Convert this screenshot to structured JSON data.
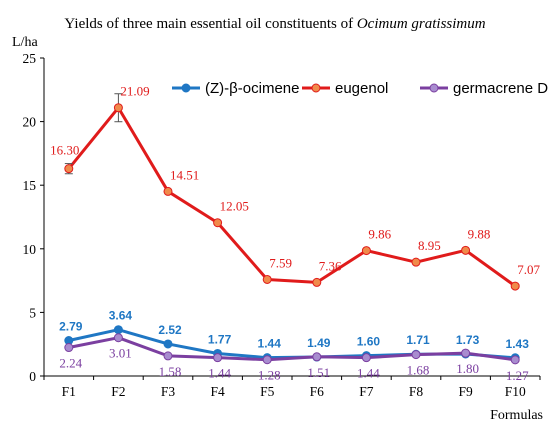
{
  "chart_data": {
    "type": "line",
    "title_plain": "Yields of three main essential oil constituents of ",
    "title_italic": "Ocimum gratissimum",
    "ylabel": "L/ha",
    "xlabel": "Formulas",
    "categories": [
      "F1",
      "F2",
      "F3",
      "F4",
      "F5",
      "F6",
      "F7",
      "F8",
      "F9",
      "F10"
    ],
    "ylim": [
      0,
      25
    ],
    "yticks": [
      "0",
      "5",
      "10",
      "15",
      "20",
      "25"
    ],
    "legend_position": "top-right",
    "series": [
      {
        "name": "(Z)-β-ocimene",
        "color": "#1f77c4",
        "marker_fill": "#1f77c4",
        "values": [
          2.79,
          3.64,
          2.52,
          1.77,
          1.44,
          1.49,
          1.6,
          1.71,
          1.73,
          1.43
        ],
        "labels": [
          "2.79",
          "3.64",
          "2.52",
          "1.77",
          "1.44",
          "1.49",
          "1.60",
          "1.71",
          "1.73",
          "1.43"
        ],
        "label_color": "#1f77c4"
      },
      {
        "name": "eugenol",
        "color": "#e01b1b",
        "marker_fill": "#f08a4b",
        "values": [
          16.3,
          21.09,
          14.51,
          12.05,
          7.59,
          7.36,
          9.86,
          8.95,
          9.88,
          7.07
        ],
        "labels": [
          "16.30",
          "21.09",
          "14.51",
          "12.05",
          "7.59",
          "7.36",
          "9.86",
          "8.95",
          "9.88",
          "7.07"
        ],
        "label_color": "#e01b1b",
        "error": [
          0.4,
          1.1,
          0,
          0,
          0,
          0,
          0,
          0,
          0,
          0
        ]
      },
      {
        "name": "germacrene D",
        "color": "#7b3fa0",
        "marker_fill": "#a88ccf",
        "values": [
          2.24,
          3.01,
          1.58,
          1.44,
          1.28,
          1.51,
          1.44,
          1.68,
          1.8,
          1.27
        ],
        "labels": [
          "2.24",
          "3.01",
          "1.58",
          "1.44",
          "1.28",
          "1.51",
          "1.44",
          "1.68",
          "1.80",
          "1.27"
        ],
        "label_color": "#7b3fa0"
      }
    ]
  }
}
